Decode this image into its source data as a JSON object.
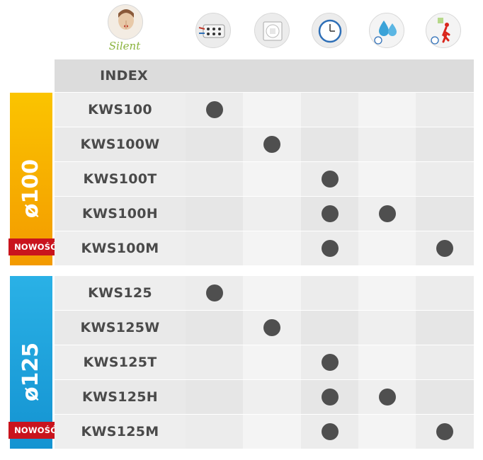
{
  "header": {
    "silent_label": "Silent",
    "icons": [
      "silent-face-icon",
      "wiring-connector-icon",
      "fan-shutter-icon",
      "timer-clock-icon",
      "humidity-drops-icon",
      "motion-sensor-icon"
    ]
  },
  "table": {
    "index_label": "INDEX",
    "groups": [
      {
        "diameter": "ø100",
        "color": "#f5a800",
        "badge": "NOWOŚĆ",
        "rows": [
          {
            "model": "KWS100",
            "features": [
              1,
              0,
              0,
              0,
              0
            ]
          },
          {
            "model": "KWS100W",
            "features": [
              0,
              1,
              0,
              0,
              0
            ]
          },
          {
            "model": "KWS100T",
            "features": [
              0,
              0,
              1,
              0,
              0
            ]
          },
          {
            "model": "KWS100H",
            "features": [
              0,
              0,
              1,
              1,
              0
            ]
          },
          {
            "model": "KWS100M",
            "features": [
              0,
              0,
              1,
              0,
              1
            ]
          }
        ]
      },
      {
        "diameter": "ø125",
        "color": "#1aa3dc",
        "badge": "NOWOŚĆ",
        "rows": [
          {
            "model": "KWS125",
            "features": [
              1,
              0,
              0,
              0,
              0
            ]
          },
          {
            "model": "KWS125W",
            "features": [
              0,
              1,
              0,
              0,
              0
            ]
          },
          {
            "model": "KWS125T",
            "features": [
              0,
              0,
              1,
              0,
              0
            ]
          },
          {
            "model": "KWS125H",
            "features": [
              0,
              0,
              1,
              1,
              0
            ]
          },
          {
            "model": "KWS125M",
            "features": [
              0,
              0,
              1,
              0,
              1
            ]
          }
        ]
      }
    ]
  }
}
